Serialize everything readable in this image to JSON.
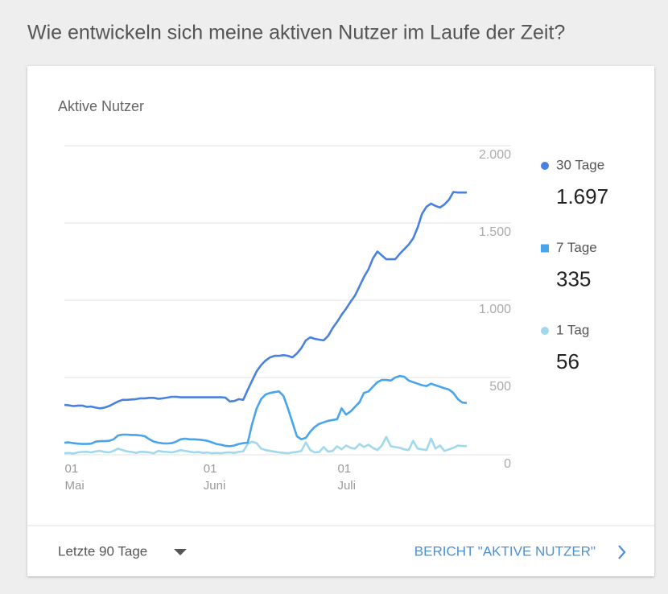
{
  "header": {
    "title": "Wie entwickeln sich meine aktiven Nutzer im Laufe der Zeit?"
  },
  "chart_data": {
    "type": "line",
    "title": "Aktive Nutzer",
    "categories": [
      null,
      {
        "day": "01",
        "month": "Mai"
      },
      null,
      null,
      null,
      null,
      null,
      null,
      null,
      null,
      null,
      null,
      null,
      null,
      null,
      null,
      null,
      null,
      null,
      null,
      null,
      null,
      null,
      null,
      null,
      null,
      null,
      null,
      null,
      null,
      null,
      null,
      {
        "day": "01",
        "month": "Juni"
      },
      null,
      null,
      null,
      null,
      null,
      null,
      null,
      null,
      null,
      null,
      null,
      null,
      null,
      null,
      null,
      null,
      null,
      null,
      null,
      null,
      null,
      null,
      null,
      null,
      null,
      null,
      null,
      null,
      null,
      {
        "day": "01",
        "month": "Juli"
      },
      null,
      null,
      null,
      null,
      null,
      null,
      null,
      null,
      null,
      null,
      null,
      null,
      null,
      null,
      null,
      null,
      null,
      null,
      null,
      null,
      null,
      null,
      null,
      null,
      null,
      null,
      null,
      null
    ],
    "series": [
      {
        "name": "30 Tage",
        "color": "#4a80e0",
        "marker": "circle",
        "legend_value": "1.697",
        "values": [
          323,
          320,
          315,
          318,
          318,
          310,
          312,
          305,
          300,
          305,
          315,
          330,
          345,
          355,
          355,
          358,
          360,
          365,
          365,
          368,
          368,
          362,
          365,
          370,
          375,
          375,
          372,
          372,
          372,
          372,
          372,
          372,
          372,
          372,
          372,
          372,
          370,
          345,
          348,
          360,
          355,
          420,
          480,
          540,
          580,
          610,
          630,
          640,
          640,
          645,
          640,
          630,
          655,
          690,
          740,
          760,
          750,
          745,
          740,
          770,
          820,
          860,
          905,
          945,
          990,
          1030,
          1090,
          1150,
          1200,
          1270,
          1315,
          1290,
          1265,
          1265,
          1265,
          1300,
          1330,
          1360,
          1400,
          1470,
          1560,
          1605,
          1625,
          1610,
          1600,
          1620,
          1650,
          1700,
          1697,
          1697,
          1697
        ]
      },
      {
        "name": "7 Tage",
        "color": "#48a4ec",
        "marker": "square",
        "legend_value": "335",
        "values": [
          78,
          80,
          75,
          72,
          70,
          70,
          72,
          85,
          88,
          88,
          90,
          100,
          125,
          130,
          130,
          128,
          128,
          125,
          120,
          100,
          85,
          78,
          74,
          73,
          75,
          85,
          100,
          104,
          100,
          100,
          98,
          95,
          90,
          80,
          70,
          65,
          58,
          55,
          60,
          70,
          75,
          78,
          200,
          300,
          360,
          390,
          400,
          405,
          410,
          380,
          300,
          210,
          120,
          100,
          110,
          150,
          180,
          200,
          210,
          220,
          225,
          230,
          300,
          260,
          280,
          310,
          340,
          400,
          410,
          440,
          470,
          484,
          484,
          480,
          500,
          510,
          505,
          480,
          470,
          460,
          450,
          445,
          460,
          450,
          440,
          430,
          422,
          400,
          360,
          338,
          335
        ]
      },
      {
        "name": "1 Tag",
        "color": "#a0d8ec",
        "marker": "circle",
        "legend_value": "56",
        "values": [
          10,
          12,
          8,
          15,
          18,
          20,
          15,
          22,
          25,
          18,
          15,
          25,
          40,
          30,
          22,
          18,
          12,
          20,
          18,
          15,
          10,
          25,
          20,
          18,
          15,
          22,
          30,
          25,
          20,
          15,
          18,
          12,
          15,
          10,
          12,
          10,
          14,
          15,
          12,
          18,
          22,
          70,
          85,
          75,
          40,
          30,
          25,
          20,
          15,
          12,
          10,
          15,
          18,
          25,
          80,
          30,
          15,
          18,
          50,
          20,
          25,
          55,
          35,
          60,
          45,
          40,
          70,
          50,
          65,
          45,
          30,
          60,
          115,
          55,
          50,
          45,
          35,
          30,
          90,
          40,
          35,
          30,
          105,
          40,
          60,
          25,
          35,
          45,
          60,
          56,
          56
        ]
      }
    ],
    "ylim": [
      0,
      2000
    ],
    "yticks": [
      0,
      500,
      {
        "value": 1000,
        "label": "1.000"
      },
      {
        "value": 1500,
        "label": "1.500"
      },
      {
        "value": 2000,
        "label": "2.000"
      }
    ],
    "grid": true
  },
  "footer": {
    "range": "Letzte 90 Tage",
    "link": "BERICHT \"AKTIVE NUTZER\""
  }
}
